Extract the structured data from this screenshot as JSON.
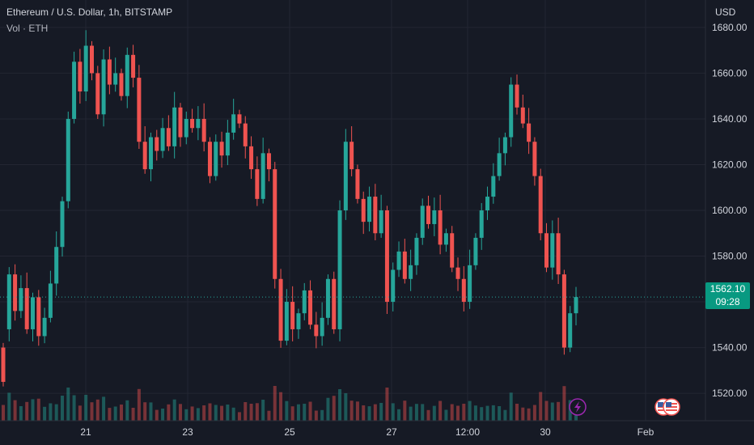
{
  "header": {
    "title": "Ethereum / U.S. Dollar, 1h, BITSTAMP",
    "volume_label": "Vol · ETH"
  },
  "axis": {
    "currency": "USD",
    "price_ticks": [
      "1680.00",
      "1660.00",
      "1640.00",
      "1620.00",
      "1600.00",
      "1580.00",
      "1560.00",
      "1540.00",
      "1520.00"
    ],
    "time_ticks": [
      "21",
      "23",
      "25",
      "27",
      "12:00",
      "30",
      "Feb"
    ]
  },
  "last_price": {
    "value": "1562.10",
    "countdown": "09:28"
  },
  "markers": {
    "event_icon": "lightning-icon",
    "flag_icon": "us-flag-icon"
  },
  "colors": {
    "background": "#161a25",
    "up": "#26a69a",
    "down": "#ef5350",
    "grid": "#232632",
    "price_tag": "#089981"
  },
  "chart_data": {
    "type": "candlestick",
    "title": "Ethereum / U.S. Dollar, 1h, BITSTAMP",
    "ylabel": "USD",
    "ylim": [
      1508,
      1692
    ],
    "x_ticks": [
      "21",
      "23",
      "25",
      "27",
      "12:00",
      "30",
      "Feb"
    ],
    "series": [
      {
        "name": "Price",
        "points": [
          [
            1540,
            1525
          ],
          [
            1548,
            1572
          ],
          [
            1572,
            1556
          ],
          [
            1556,
            1566
          ],
          [
            1566,
            1548
          ],
          [
            1548,
            1562
          ],
          [
            1562,
            1545
          ],
          [
            1545,
            1553
          ],
          [
            1553,
            1568
          ],
          [
            1568,
            1584
          ],
          [
            1584,
            1604
          ],
          [
            1604,
            1640
          ],
          [
            1640,
            1665
          ],
          [
            1665,
            1652
          ],
          [
            1652,
            1672
          ],
          [
            1672,
            1660
          ],
          [
            1660,
            1642
          ],
          [
            1642,
            1666
          ],
          [
            1666,
            1655
          ],
          [
            1655,
            1660
          ],
          [
            1660,
            1650
          ],
          [
            1650,
            1668
          ],
          [
            1668,
            1658
          ],
          [
            1658,
            1630
          ],
          [
            1630,
            1618
          ],
          [
            1618,
            1632
          ],
          [
            1632,
            1626
          ],
          [
            1626,
            1636
          ],
          [
            1636,
            1628
          ],
          [
            1628,
            1645
          ],
          [
            1645,
            1632
          ],
          [
            1632,
            1640
          ],
          [
            1640,
            1636
          ],
          [
            1636,
            1640
          ],
          [
            1640,
            1630
          ],
          [
            1630,
            1615
          ],
          [
            1615,
            1630
          ],
          [
            1630,
            1624
          ],
          [
            1624,
            1634
          ],
          [
            1634,
            1642
          ],
          [
            1642,
            1638
          ],
          [
            1638,
            1628
          ],
          [
            1628,
            1618
          ],
          [
            1618,
            1605
          ],
          [
            1605,
            1625
          ],
          [
            1625,
            1618
          ],
          [
            1618,
            1570
          ],
          [
            1570,
            1543
          ],
          [
            1543,
            1560
          ],
          [
            1560,
            1548
          ],
          [
            1548,
            1555
          ],
          [
            1555,
            1565
          ],
          [
            1565,
            1550
          ],
          [
            1550,
            1545
          ],
          [
            1545,
            1553
          ],
          [
            1553,
            1570
          ],
          [
            1570,
            1548
          ],
          [
            1548,
            1600
          ],
          [
            1600,
            1630
          ],
          [
            1630,
            1618
          ],
          [
            1618,
            1605
          ],
          [
            1605,
            1595
          ],
          [
            1595,
            1606
          ],
          [
            1606,
            1590
          ],
          [
            1590,
            1600
          ],
          [
            1600,
            1560
          ],
          [
            1560,
            1574
          ],
          [
            1574,
            1582
          ],
          [
            1582,
            1570
          ],
          [
            1570,
            1576
          ],
          [
            1576,
            1588
          ],
          [
            1588,
            1602
          ],
          [
            1602,
            1594
          ],
          [
            1594,
            1600
          ],
          [
            1600,
            1585
          ],
          [
            1585,
            1590
          ],
          [
            1590,
            1575
          ],
          [
            1575,
            1570
          ],
          [
            1570,
            1560
          ],
          [
            1560,
            1576
          ],
          [
            1576,
            1588
          ],
          [
            1588,
            1600
          ],
          [
            1600,
            1606
          ],
          [
            1606,
            1615
          ],
          [
            1615,
            1625
          ],
          [
            1625,
            1632
          ],
          [
            1632,
            1655
          ],
          [
            1655,
            1645
          ],
          [
            1645,
            1638
          ],
          [
            1638,
            1630
          ],
          [
            1630,
            1615
          ],
          [
            1615,
            1590
          ],
          [
            1590,
            1575
          ],
          [
            1575,
            1590
          ],
          [
            1590,
            1572
          ],
          [
            1572,
            1540
          ],
          [
            1540,
            1555
          ],
          [
            1555,
            1562.1
          ]
        ]
      }
    ],
    "last_price": 1562.1
  }
}
